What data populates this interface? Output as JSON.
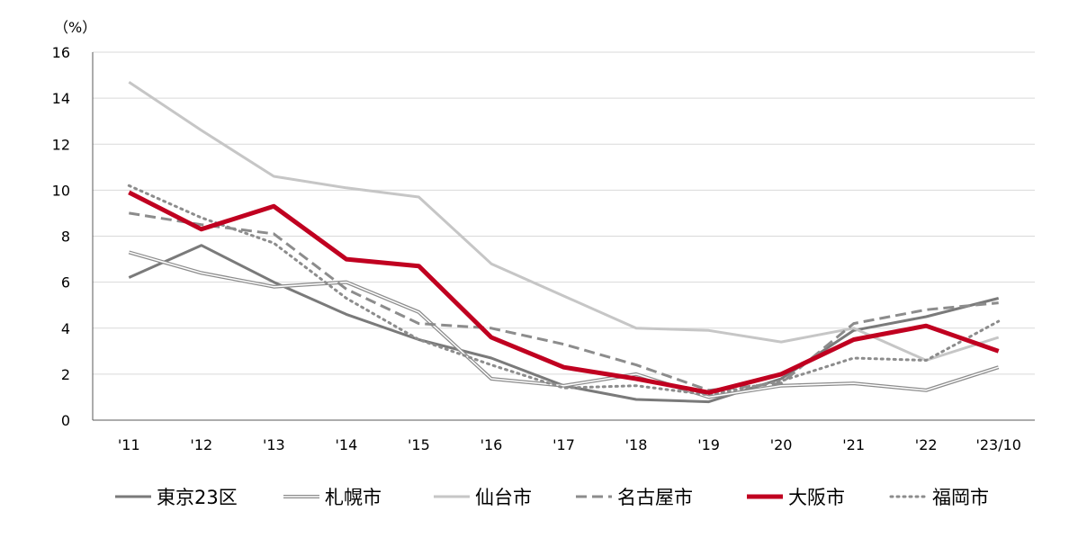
{
  "chart_data": {
    "type": "line",
    "unit_label": "（%）",
    "categories": [
      "'11",
      "'12",
      "'13",
      "'14",
      "'15",
      "'16",
      "'17",
      "'18",
      "'19",
      "'20",
      "'21",
      "'22",
      "'23/10"
    ],
    "ylim": [
      0,
      16
    ],
    "yticks": [
      0,
      2,
      4,
      6,
      8,
      10,
      12,
      14,
      16
    ],
    "grid": true,
    "legend_position": "bottom",
    "series": [
      {
        "name": "東京23区",
        "color": "#7a7a7a",
        "style": "solid",
        "values": [
          6.2,
          7.6,
          6.0,
          4.6,
          3.5,
          2.7,
          1.5,
          0.9,
          0.8,
          1.8,
          3.9,
          4.5,
          5.3
        ]
      },
      {
        "name": "札幌市",
        "color": "#8c8c8c",
        "style": "double",
        "values": [
          7.3,
          6.4,
          5.8,
          6.0,
          4.7,
          1.8,
          1.5,
          2.0,
          1.0,
          1.5,
          1.6,
          1.3,
          2.3
        ]
      },
      {
        "name": "仙台市",
        "color": "#c6c6c6",
        "style": "solid",
        "values": [
          14.7,
          12.6,
          10.6,
          10.1,
          9.7,
          6.8,
          5.4,
          4.0,
          3.9,
          3.4,
          4.0,
          2.6,
          3.6
        ]
      },
      {
        "name": "名古屋市",
        "color": "#8c8c8c",
        "style": "dashed",
        "values": [
          9.0,
          8.5,
          8.1,
          5.7,
          4.2,
          4.0,
          3.3,
          2.4,
          1.3,
          1.6,
          4.2,
          4.8,
          5.1
        ]
      },
      {
        "name": "大阪市",
        "color": "#c00020",
        "style": "bold",
        "values": [
          9.9,
          8.3,
          9.3,
          7.0,
          6.7,
          3.6,
          2.3,
          1.8,
          1.2,
          2.0,
          3.5,
          4.1,
          3.0
        ]
      },
      {
        "name": "福岡市",
        "color": "#8c8c8c",
        "style": "dotted",
        "values": [
          10.2,
          8.8,
          7.7,
          5.3,
          3.5,
          2.4,
          1.4,
          1.5,
          1.1,
          1.7,
          2.7,
          2.6,
          4.3
        ]
      }
    ]
  }
}
